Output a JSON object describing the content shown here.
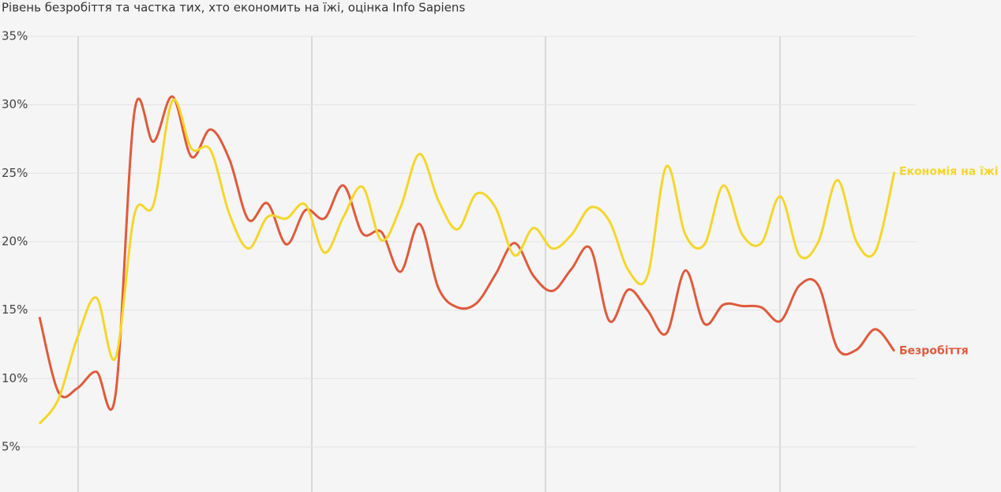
{
  "chart_data": {
    "type": "line",
    "title": "Рівень безробіття та частка тих, хто економить на їжі, оцінка Info Sapiens",
    "categories": [
      null,
      null,
      null,
      null,
      null,
      null,
      null,
      null,
      null,
      null,
      null,
      null,
      null,
      null,
      null,
      null,
      null,
      null,
      null,
      null,
      null,
      null,
      null,
      null,
      null,
      null,
      null,
      null,
      null,
      null,
      null,
      null,
      null,
      null,
      null,
      null,
      null,
      null,
      null,
      null,
      null,
      null,
      null,
      null,
      null,
      null
    ],
    "series": [
      {
        "name": "Безробіття",
        "color": "#e05a3c",
        "values": [
          14.5,
          9.0,
          9.3,
          10.5,
          8.8,
          29.5,
          27.3,
          30.6,
          26.2,
          28.2,
          26.0,
          21.6,
          22.8,
          19.8,
          22.3,
          21.7,
          24.1,
          20.6,
          20.7,
          17.8,
          21.3,
          16.6,
          15.2,
          15.5,
          17.6,
          19.9,
          17.5,
          16.4,
          18.0,
          19.5,
          14.2,
          16.5,
          15.0,
          13.3,
          17.9,
          14.0,
          15.4,
          15.3,
          15.2,
          14.2,
          16.8,
          16.8,
          12.2,
          12.1,
          13.6,
          12.0
        ]
      },
      {
        "name": "Економія на їжі",
        "color": "#f5d62a",
        "values": [
          6.7,
          8.5,
          13.0,
          15.9,
          11.5,
          22.0,
          22.7,
          30.3,
          26.8,
          26.7,
          22.0,
          19.5,
          21.8,
          21.7,
          22.7,
          19.2,
          21.8,
          24.0,
          20.1,
          22.5,
          26.4,
          23.0,
          20.9,
          23.5,
          22.5,
          19.0,
          21.0,
          19.5,
          20.5,
          22.5,
          21.5,
          17.9,
          17.5,
          25.5,
          20.5,
          19.8,
          24.1,
          20.5,
          19.9,
          23.3,
          19.0,
          20.0,
          24.5,
          20.0,
          19.3,
          25.1
        ]
      }
    ],
    "ylim": [
      0,
      35
    ],
    "yticks": [
      {
        "value": 5,
        "label": "5%"
      },
      {
        "value": 10,
        "label": "10%"
      },
      {
        "value": 15,
        "label": "15%"
      },
      {
        "value": 20,
        "label": "20%"
      },
      {
        "value": 25,
        "label": "25%"
      },
      {
        "value": 30,
        "label": "30%"
      },
      {
        "value": 35,
        "label": "35%"
      }
    ],
    "grid": true
  }
}
